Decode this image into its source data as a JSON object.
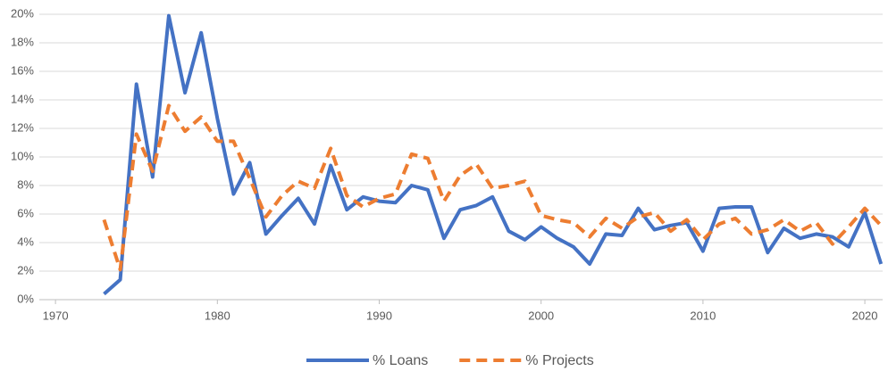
{
  "chart_data": {
    "type": "line",
    "x": [
      1973,
      1974,
      1975,
      1976,
      1977,
      1978,
      1979,
      1980,
      1981,
      1982,
      1983,
      1984,
      1985,
      1986,
      1987,
      1988,
      1989,
      1990,
      1991,
      1992,
      1993,
      1994,
      1995,
      1996,
      1997,
      1998,
      1999,
      2000,
      2001,
      2002,
      2003,
      2004,
      2005,
      2006,
      2007,
      2008,
      2009,
      2010,
      2011,
      2012,
      2013,
      2014,
      2015,
      2016,
      2017,
      2018,
      2019,
      2020,
      2021
    ],
    "series": [
      {
        "name": "% Loans",
        "color": "#4472c4",
        "dash": false,
        "values": [
          0.4,
          1.4,
          15.1,
          8.6,
          19.9,
          14.5,
          18.7,
          12.7,
          7.4,
          9.6,
          4.6,
          5.9,
          7.1,
          5.3,
          9.4,
          6.3,
          7.2,
          6.9,
          6.8,
          8.0,
          7.7,
          4.3,
          6.3,
          6.6,
          7.2,
          4.8,
          4.2,
          5.1,
          4.3,
          3.7,
          2.5,
          4.6,
          4.5,
          6.4,
          4.9,
          5.2,
          5.4,
          3.4,
          6.4,
          6.5,
          6.5,
          3.3,
          5.0,
          4.3,
          4.6,
          4.4,
          3.7,
          6.1,
          2.5
        ]
      },
      {
        "name": "% Projects",
        "color": "#ed7d31",
        "dash": true,
        "values": [
          5.6,
          2.1,
          11.6,
          9.0,
          13.6,
          11.8,
          12.8,
          11.1,
          11.1,
          8.5,
          5.8,
          7.3,
          8.3,
          7.8,
          10.6,
          7.3,
          6.5,
          7.1,
          7.4,
          10.2,
          9.9,
          6.9,
          8.7,
          9.5,
          7.8,
          8.0,
          8.3,
          5.9,
          5.6,
          5.4,
          4.4,
          5.7,
          5.0,
          5.8,
          6.1,
          4.8,
          5.6,
          4.2,
          5.3,
          5.7,
          4.6,
          4.9,
          5.6,
          4.8,
          5.4,
          3.9,
          5.1,
          6.4,
          5.2
        ]
      }
    ],
    "xlim": [
      1969,
      2021.1
    ],
    "xticks": [
      1970,
      1980,
      1990,
      2000,
      2010,
      2020
    ],
    "ylim": [
      0,
      20
    ],
    "yticks": [
      {
        "value": 0,
        "label": "0%"
      },
      {
        "value": 2,
        "label": "2%"
      },
      {
        "value": 4,
        "label": "4%"
      },
      {
        "value": 6,
        "label": "6%"
      },
      {
        "value": 8,
        "label": "8%"
      },
      {
        "value": 10,
        "label": "10%"
      },
      {
        "value": 12,
        "label": "12%"
      },
      {
        "value": 14,
        "label": "14%"
      },
      {
        "value": 16,
        "label": "16%"
      },
      {
        "value": 18,
        "label": "18%"
      },
      {
        "value": 20,
        "label": "20%"
      }
    ],
    "grid": true,
    "legend": "bottom"
  }
}
